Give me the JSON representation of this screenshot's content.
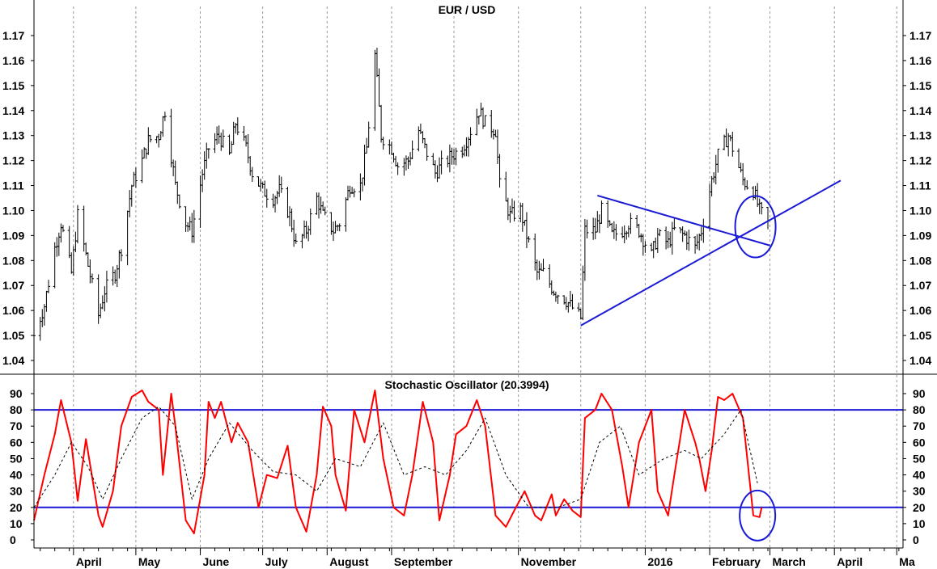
{
  "chart_data": [
    {
      "type": "candlestick",
      "title": "EUR / USD",
      "ylim": [
        1.035,
        1.175
      ],
      "yticks": [
        "1.04",
        "1.05",
        "1.06",
        "1.07",
        "1.08",
        "1.09",
        "1.10",
        "1.11",
        "1.12",
        "1.13",
        "1.14",
        "1.15",
        "1.16",
        "1.17"
      ],
      "x_range": [
        "2015-03-13",
        "2016-05-04"
      ],
      "months": [
        {
          "label": "April",
          "date": "2015-04-01"
        },
        {
          "label": "May",
          "date": "2015-05-01"
        },
        {
          "label": "June",
          "date": "2015-06-01"
        },
        {
          "label": "July",
          "date": "2015-07-01"
        },
        {
          "label": "August",
          "date": "2015-08-01"
        },
        {
          "label": "September",
          "date": "2015-09-01"
        },
        {
          "label": "November",
          "date": "2015-11-01"
        },
        {
          "label": "2016",
          "date": "2016-01-01"
        },
        {
          "label": "February",
          "date": "2016-02-01"
        },
        {
          "label": "March",
          "date": "2016-03-01"
        },
        {
          "label": "April",
          "date": "2016-04-01"
        },
        {
          "label": "Ma",
          "date": "2016-05-01"
        }
      ],
      "gridline_dates": [
        "2015-04-01",
        "2015-05-01",
        "2015-06-01",
        "2015-07-01",
        "2015-08-01",
        "2015-09-01",
        "2015-10-01",
        "2015-11-01",
        "2015-12-01",
        "2016-01-01",
        "2016-02-01",
        "2016-03-01",
        "2016-04-01",
        "2016-05-01"
      ],
      "close_series": [
        [
          "2015-03-13",
          1.05
        ],
        [
          "2015-03-18",
          1.062
        ],
        [
          "2015-03-23",
          1.085
        ],
        [
          "2015-03-26",
          1.095
        ],
        [
          "2015-03-31",
          1.075
        ],
        [
          "2015-04-03",
          1.098
        ],
        [
          "2015-04-08",
          1.078
        ],
        [
          "2015-04-13",
          1.058
        ],
        [
          "2015-04-16",
          1.068
        ],
        [
          "2015-04-21",
          1.075
        ],
        [
          "2015-04-24",
          1.085
        ],
        [
          "2015-04-29",
          1.11
        ],
        [
          "2015-05-04",
          1.12
        ],
        [
          "2015-05-07",
          1.128
        ],
        [
          "2015-05-12",
          1.13
        ],
        [
          "2015-05-15",
          1.14
        ],
        [
          "2015-05-20",
          1.11
        ],
        [
          "2015-05-25",
          1.095
        ],
        [
          "2015-05-28",
          1.092
        ],
        [
          "2015-06-02",
          1.115
        ],
        [
          "2015-06-05",
          1.125
        ],
        [
          "2015-06-10",
          1.13
        ],
        [
          "2015-06-15",
          1.122
        ],
        [
          "2015-06-18",
          1.135
        ],
        [
          "2015-06-23",
          1.125
        ],
        [
          "2015-06-26",
          1.115
        ],
        [
          "2015-07-01",
          1.108
        ],
        [
          "2015-07-06",
          1.105
        ],
        [
          "2015-07-09",
          1.108
        ],
        [
          "2015-07-14",
          1.098
        ],
        [
          "2015-07-17",
          1.086
        ],
        [
          "2015-07-22",
          1.092
        ],
        [
          "2015-07-27",
          1.105
        ],
        [
          "2015-07-30",
          1.098
        ],
        [
          "2015-08-04",
          1.092
        ],
        [
          "2015-08-07",
          1.095
        ],
        [
          "2015-08-12",
          1.11
        ],
        [
          "2015-08-17",
          1.11
        ],
        [
          "2015-08-20",
          1.125
        ],
        [
          "2015-08-24",
          1.162
        ],
        [
          "2015-08-27",
          1.13
        ],
        [
          "2015-09-01",
          1.125
        ],
        [
          "2015-09-04",
          1.118
        ],
        [
          "2015-09-09",
          1.12
        ],
        [
          "2015-09-14",
          1.132
        ],
        [
          "2015-09-17",
          1.125
        ],
        [
          "2015-09-22",
          1.115
        ],
        [
          "2015-09-25",
          1.118
        ],
        [
          "2015-09-30",
          1.122
        ],
        [
          "2015-10-05",
          1.125
        ],
        [
          "2015-10-08",
          1.13
        ],
        [
          "2015-10-13",
          1.14
        ],
        [
          "2015-10-16",
          1.135
        ],
        [
          "2015-10-21",
          1.132
        ],
        [
          "2015-10-23",
          1.11
        ],
        [
          "2015-10-28",
          1.098
        ],
        [
          "2015-11-02",
          1.1
        ],
        [
          "2015-11-05",
          1.09
        ],
        [
          "2015-11-10",
          1.075
        ],
        [
          "2015-11-13",
          1.075
        ],
        [
          "2015-11-18",
          1.068
        ],
        [
          "2015-11-23",
          1.065
        ],
        [
          "2015-11-26",
          1.062
        ],
        [
          "2015-12-01",
          1.057
        ],
        [
          "2015-12-03",
          1.092
        ],
        [
          "2015-12-08",
          1.092
        ],
        [
          "2015-12-11",
          1.1
        ],
        [
          "2015-12-16",
          1.09
        ],
        [
          "2015-12-21",
          1.092
        ],
        [
          "2015-12-24",
          1.095
        ],
        [
          "2015-12-29",
          1.092
        ],
        [
          "2016-01-04",
          1.082
        ],
        [
          "2016-01-07",
          1.09
        ],
        [
          "2016-01-12",
          1.087
        ],
        [
          "2016-01-15",
          1.092
        ],
        [
          "2016-01-20",
          1.09
        ],
        [
          "2016-01-25",
          1.085
        ],
        [
          "2016-01-28",
          1.092
        ],
        [
          "2016-02-02",
          1.112
        ],
        [
          "2016-02-05",
          1.122
        ],
        [
          "2016-02-10",
          1.13
        ],
        [
          "2016-02-12",
          1.125
        ],
        [
          "2016-02-17",
          1.112
        ],
        [
          "2016-02-22",
          1.108
        ],
        [
          "2016-02-25",
          1.1
        ],
        [
          "2016-02-29",
          1.095
        ]
      ],
      "annotations": [
        {
          "type": "trendline",
          "from": [
            "2015-12-09",
            1.106
          ],
          "to": [
            "2016-03-01",
            1.086
          ]
        },
        {
          "type": "trendline",
          "from": [
            "2015-12-01",
            1.054
          ],
          "to": [
            "2016-04-04",
            1.112
          ]
        },
        {
          "type": "ellipse",
          "center": [
            "2016-02-23",
            1.0935
          ]
        }
      ]
    },
    {
      "type": "line",
      "title": "Stochastic Oscillator (20.3994)",
      "ylim": [
        -3,
        95
      ],
      "yticks": [
        "0",
        "10",
        "20",
        "30",
        "40",
        "50",
        "60",
        "70",
        "80",
        "90"
      ],
      "levels": [
        20,
        80
      ],
      "series": [
        {
          "color": "#ff0000",
          "points": [
            [
              "2015-03-13",
              12
            ],
            [
              "2015-03-18",
              40
            ],
            [
              "2015-03-23",
              65
            ],
            [
              "2015-03-26",
              86
            ],
            [
              "2015-03-31",
              60
            ],
            [
              "2015-04-03",
              24
            ],
            [
              "2015-04-07",
              62
            ],
            [
              "2015-04-13",
              15
            ],
            [
              "2015-04-15",
              8
            ],
            [
              "2015-04-20",
              30
            ],
            [
              "2015-04-24",
              70
            ],
            [
              "2015-04-29",
              88
            ],
            [
              "2015-05-04",
              92
            ],
            [
              "2015-05-07",
              85
            ],
            [
              "2015-05-12",
              80
            ],
            [
              "2015-05-14",
              40
            ],
            [
              "2015-05-18",
              90
            ],
            [
              "2015-05-20",
              70
            ],
            [
              "2015-05-25",
              12
            ],
            [
              "2015-05-29",
              4
            ],
            [
              "2015-06-03",
              40
            ],
            [
              "2015-06-05",
              85
            ],
            [
              "2015-06-08",
              75
            ],
            [
              "2015-06-11",
              85
            ],
            [
              "2015-06-16",
              60
            ],
            [
              "2015-06-19",
              72
            ],
            [
              "2015-06-24",
              60
            ],
            [
              "2015-06-29",
              20
            ],
            [
              "2015-07-03",
              40
            ],
            [
              "2015-07-08",
              38
            ],
            [
              "2015-07-13",
              58
            ],
            [
              "2015-07-17",
              20
            ],
            [
              "2015-07-22",
              5
            ],
            [
              "2015-07-27",
              40
            ],
            [
              "2015-07-30",
              82
            ],
            [
              "2015-08-03",
              70
            ],
            [
              "2015-08-05",
              40
            ],
            [
              "2015-08-10",
              18
            ],
            [
              "2015-08-14",
              80
            ],
            [
              "2015-08-19",
              60
            ],
            [
              "2015-08-24",
              92
            ],
            [
              "2015-08-28",
              50
            ],
            [
              "2015-09-02",
              20
            ],
            [
              "2015-09-07",
              15
            ],
            [
              "2015-09-11",
              40
            ],
            [
              "2015-09-16",
              85
            ],
            [
              "2015-09-21",
              60
            ],
            [
              "2015-09-24",
              12
            ],
            [
              "2015-09-29",
              40
            ],
            [
              "2015-10-02",
              65
            ],
            [
              "2015-10-07",
              70
            ],
            [
              "2015-10-12",
              86
            ],
            [
              "2015-10-16",
              70
            ],
            [
              "2015-10-21",
              15
            ],
            [
              "2015-10-26",
              8
            ],
            [
              "2015-10-30",
              18
            ],
            [
              "2015-11-04",
              30
            ],
            [
              "2015-11-09",
              15
            ],
            [
              "2015-11-12",
              12
            ],
            [
              "2015-11-17",
              28
            ],
            [
              "2015-11-19",
              15
            ],
            [
              "2015-11-23",
              25
            ],
            [
              "2015-11-27",
              18
            ],
            [
              "2015-12-01",
              14
            ],
            [
              "2015-12-03",
              75
            ],
            [
              "2015-12-08",
              80
            ],
            [
              "2015-12-11",
              90
            ],
            [
              "2015-12-16",
              80
            ],
            [
              "2015-12-21",
              45
            ],
            [
              "2015-12-24",
              20
            ],
            [
              "2015-12-29",
              60
            ],
            [
              "2016-01-04",
              80
            ],
            [
              "2016-01-07",
              30
            ],
            [
              "2016-01-12",
              15
            ],
            [
              "2016-01-15",
              40
            ],
            [
              "2016-01-20",
              80
            ],
            [
              "2016-01-25",
              60
            ],
            [
              "2016-01-27",
              50
            ],
            [
              "2016-01-30",
              30
            ],
            [
              "2016-02-02",
              55
            ],
            [
              "2016-02-05",
              88
            ],
            [
              "2016-02-08",
              86
            ],
            [
              "2016-02-12",
              90
            ],
            [
              "2016-02-17",
              75
            ],
            [
              "2016-02-22",
              15
            ],
            [
              "2016-02-25",
              14
            ],
            [
              "2016-02-26",
              20
            ]
          ]
        },
        {
          "color": "#000000",
          "dash": "dotted",
          "points": [
            [
              "2015-03-13",
              20
            ],
            [
              "2015-03-23",
              40
            ],
            [
              "2015-03-31",
              60
            ],
            [
              "2015-04-08",
              45
            ],
            [
              "2015-04-15",
              25
            ],
            [
              "2015-04-24",
              50
            ],
            [
              "2015-05-04",
              75
            ],
            [
              "2015-05-12",
              82
            ],
            [
              "2015-05-20",
              70
            ],
            [
              "2015-05-28",
              25
            ],
            [
              "2015-06-05",
              50
            ],
            [
              "2015-06-15",
              72
            ],
            [
              "2015-06-26",
              55
            ],
            [
              "2015-07-06",
              42
            ],
            [
              "2015-07-17",
              40
            ],
            [
              "2015-07-27",
              30
            ],
            [
              "2015-08-05",
              50
            ],
            [
              "2015-08-17",
              45
            ],
            [
              "2015-08-28",
              72
            ],
            [
              "2015-09-07",
              40
            ],
            [
              "2015-09-17",
              45
            ],
            [
              "2015-09-27",
              40
            ],
            [
              "2015-10-07",
              55
            ],
            [
              "2015-10-16",
              75
            ],
            [
              "2015-10-26",
              40
            ],
            [
              "2015-11-06",
              20
            ],
            [
              "2015-11-20",
              20
            ],
            [
              "2015-12-01",
              25
            ],
            [
              "2015-12-10",
              60
            ],
            [
              "2015-12-20",
              70
            ],
            [
              "2015-12-29",
              40
            ],
            [
              "2016-01-10",
              50
            ],
            [
              "2016-01-20",
              55
            ],
            [
              "2016-01-28",
              50
            ],
            [
              "2016-02-08",
              65
            ],
            [
              "2016-02-16",
              80
            ],
            [
              "2016-02-24",
              35
            ]
          ]
        }
      ],
      "annotations": [
        {
          "type": "ellipse",
          "center": [
            "2016-02-24",
            15
          ]
        }
      ]
    }
  ]
}
